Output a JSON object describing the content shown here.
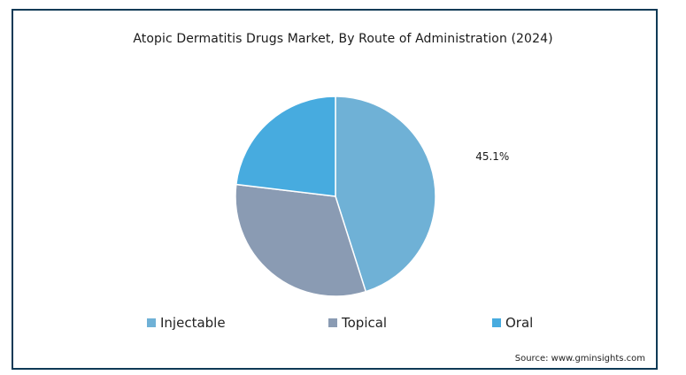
{
  "chart_data": {
    "type": "pie",
    "title": "Atopic Dermatitis Drugs Market, By Route of Administration (2024)",
    "categories": [
      "Injectable",
      "Topical",
      "Oral"
    ],
    "values": [
      45.1,
      31.8,
      23.1
    ],
    "labels": [
      "45.1%",
      "",
      ""
    ],
    "colors": [
      "#6fb1d6",
      "#8a9bb3",
      "#47abdf"
    ],
    "legend_position": "bottom",
    "source": "Source: www.gminsights.com"
  }
}
